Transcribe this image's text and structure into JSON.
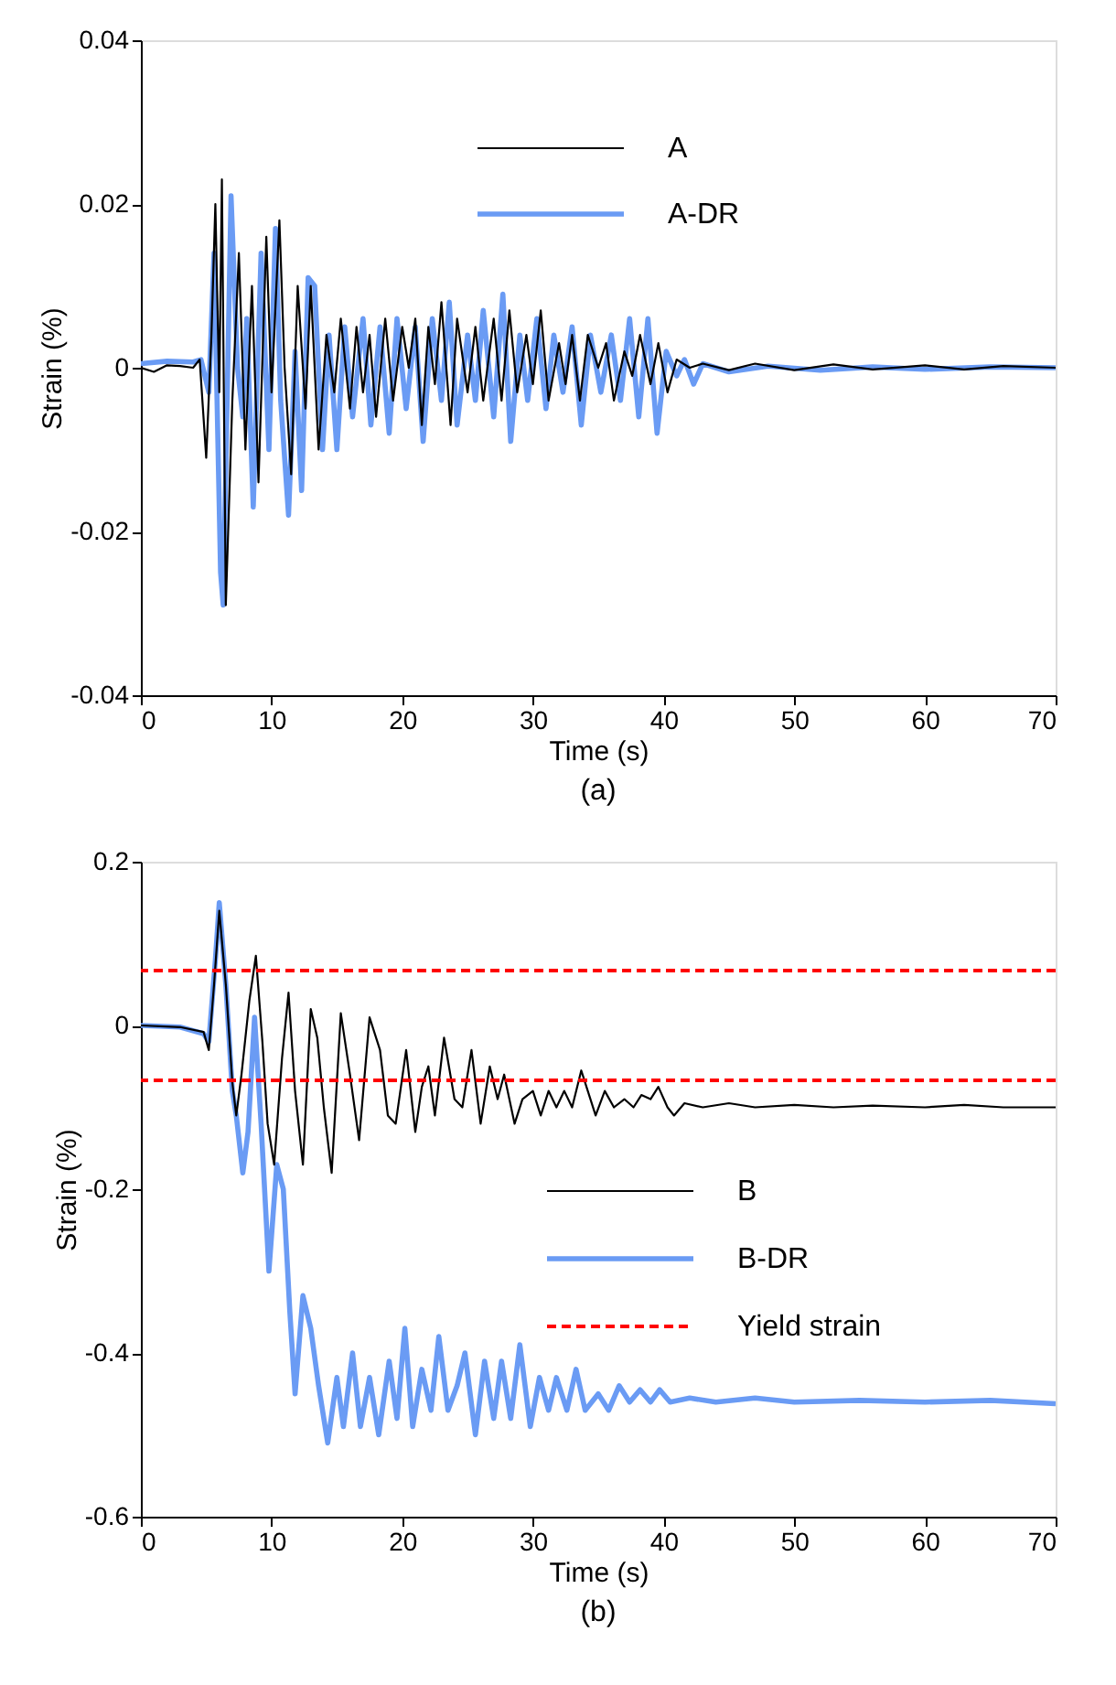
{
  "chart_data": [
    {
      "type": "line",
      "xlabel": "Time (s)",
      "ylabel": "Strain (%)",
      "xlim": [
        0,
        70
      ],
      "ylim": [
        -0.04,
        0.04
      ],
      "xticks": [
        0,
        10,
        20,
        30,
        40,
        50,
        60,
        70
      ],
      "yticks": [
        -0.04,
        -0.02,
        0,
        0.02,
        0.04
      ],
      "legend": "top",
      "annotations": [
        "(a)"
      ],
      "series": [
        {
          "name": "A",
          "color": "#000000",
          "x": [
            0,
            1,
            2,
            3,
            4,
            4.5,
            5,
            5.4,
            5.7,
            6.0,
            6.2,
            6.5,
            7,
            7.5,
            8,
            8.5,
            9,
            9.6,
            10,
            10.6,
            11,
            11.5,
            12,
            12.6,
            13,
            13.6,
            14.2,
            14.8,
            15.3,
            16,
            16.5,
            17,
            17.5,
            18,
            18.7,
            19.3,
            20,
            20.5,
            21,
            21.5,
            22,
            22.5,
            23,
            23.7,
            24.2,
            25,
            25.6,
            26.2,
            27,
            27.6,
            28.2,
            28.8,
            29.5,
            30,
            30.6,
            31.2,
            32,
            32.5,
            33,
            33.6,
            34.2,
            35,
            35.6,
            36.2,
            37,
            37.6,
            38.2,
            39,
            39.6,
            40.3,
            41,
            42,
            43,
            45,
            47,
            50,
            53,
            56,
            60,
            63,
            66,
            70
          ],
          "values": [
            0,
            -0.0005,
            0.0003,
            0.0002,
            0,
            0.001,
            -0.011,
            0.004,
            0.02,
            -0.003,
            0.023,
            -0.029,
            -0.004,
            0.014,
            -0.01,
            0.01,
            -0.014,
            0.016,
            -0.003,
            0.018,
            0.0,
            -0.013,
            0.01,
            -0.005,
            0.01,
            -0.01,
            0.004,
            -0.003,
            0.006,
            -0.005,
            0.005,
            -0.003,
            0.004,
            -0.006,
            0.006,
            -0.004,
            0.005,
            0,
            0.006,
            -0.007,
            0.005,
            -0.002,
            0.008,
            -0.007,
            0.006,
            -0.003,
            0.005,
            -0.004,
            0.006,
            -0.004,
            0.007,
            -0.003,
            0.004,
            -0.002,
            0.007,
            -0.004,
            0.003,
            -0.002,
            0.004,
            -0.004,
            0.004,
            0,
            0.003,
            -0.004,
            0.002,
            -0.001,
            0.004,
            -0.002,
            0.003,
            -0.003,
            0.001,
            0,
            0.0005,
            -0.0003,
            0.0005,
            -0.0003,
            0.0004,
            -0.0002,
            0.0003,
            -0.0002,
            0.0002,
            0
          ]
        },
        {
          "name": "A-DR",
          "color": "#6a9bf4",
          "x": [
            0,
            2,
            4,
            4.6,
            5.2,
            5.6,
            6.1,
            6.3,
            6.9,
            7.4,
            7.8,
            8.1,
            8.6,
            9.2,
            9.8,
            10.3,
            10.7,
            11.3,
            11.8,
            12.3,
            12.8,
            13.3,
            13.9,
            14.4,
            15,
            15.6,
            16.2,
            17,
            17.6,
            18.3,
            19,
            19.6,
            20.3,
            21,
            21.6,
            22.3,
            23,
            23.6,
            24.2,
            25,
            25.6,
            26.2,
            27,
            27.7,
            28.3,
            29,
            29.6,
            30.3,
            31,
            31.6,
            32.3,
            33,
            33.7,
            34.4,
            35.2,
            36,
            36.7,
            37.4,
            38.1,
            38.8,
            39.5,
            40.2,
            41,
            41.6,
            42.3,
            43,
            45,
            48,
            52,
            56,
            60,
            65,
            70
          ],
          "values": [
            0.0005,
            0.0008,
            0.0007,
            0.001,
            -0.003,
            0.014,
            -0.025,
            -0.029,
            0.021,
            0.0,
            -0.006,
            0.006,
            -0.017,
            0.014,
            -0.01,
            0.017,
            -0.004,
            -0.018,
            0.002,
            -0.015,
            0.011,
            0.01,
            -0.01,
            0.004,
            -0.01,
            0.005,
            -0.006,
            0.006,
            -0.007,
            0.005,
            -0.008,
            0.006,
            -0.005,
            0.005,
            -0.009,
            0.006,
            -0.004,
            0.008,
            -0.007,
            0.004,
            -0.004,
            0.007,
            -0.006,
            0.009,
            -0.009,
            0.004,
            -0.004,
            0.006,
            -0.005,
            0.004,
            -0.003,
            0.005,
            -0.007,
            0.004,
            -0.003,
            0.004,
            -0.004,
            0.006,
            -0.006,
            0.006,
            -0.008,
            0.002,
            -0.001,
            0.001,
            -0.002,
            0.0005,
            -0.0005,
            0.0002,
            -0.0003,
            0.0001,
            -0.0002,
            0.0001,
            0
          ]
        }
      ]
    },
    {
      "type": "line",
      "xlabel": "Time (s)",
      "ylabel": "Strain (%)",
      "xlim": [
        0,
        70
      ],
      "ylim": [
        -0.6,
        0.2
      ],
      "xticks": [
        0,
        10,
        20,
        30,
        40,
        50,
        60,
        70
      ],
      "yticks": [
        -0.6,
        -0.4,
        -0.2,
        0,
        0.2
      ],
      "legend": "right",
      "annotations": [
        "(b)"
      ],
      "ref_lines": [
        {
          "axis": "y",
          "value": 0.067,
          "label": "Yield strain",
          "color": "#ff0000",
          "line_style": "dashed"
        },
        {
          "axis": "y",
          "value": -0.067,
          "label": null,
          "color": "#ff0000",
          "line_style": "dashed"
        }
      ],
      "series": [
        {
          "name": "B",
          "color": "#000000",
          "x": [
            0,
            3,
            4.8,
            5.2,
            5.6,
            6.0,
            6.5,
            7,
            7.3,
            7.7,
            8.3,
            8.8,
            9.3,
            9.7,
            10.2,
            10.8,
            11.3,
            11.8,
            12.4,
            13,
            13.5,
            14,
            14.6,
            15.3,
            16,
            16.7,
            17.5,
            18.3,
            18.9,
            19.5,
            20.3,
            21,
            21.5,
            22,
            22.5,
            23.2,
            24,
            24.6,
            25.3,
            26,
            26.7,
            27.3,
            27.8,
            28.6,
            29.2,
            30,
            30.6,
            31.2,
            31.8,
            32.4,
            33,
            33.7,
            34.2,
            34.8,
            35.5,
            36.2,
            37,
            37.7,
            38.3,
            39,
            39.6,
            40.3,
            40.8,
            41.6,
            43,
            45,
            47,
            50,
            53,
            56,
            60,
            63,
            66,
            70
          ],
          "values": [
            0,
            -0.002,
            -0.008,
            -0.03,
            0.05,
            0.14,
            0.05,
            -0.07,
            -0.11,
            -0.06,
            0.03,
            0.085,
            -0.02,
            -0.12,
            -0.17,
            -0.04,
            0.04,
            -0.08,
            -0.17,
            0.02,
            -0.015,
            -0.1,
            -0.18,
            0.015,
            -0.06,
            -0.14,
            0.01,
            -0.03,
            -0.11,
            -0.12,
            -0.03,
            -0.13,
            -0.075,
            -0.05,
            -0.11,
            -0.015,
            -0.09,
            -0.1,
            -0.03,
            -0.12,
            -0.05,
            -0.09,
            -0.06,
            -0.12,
            -0.09,
            -0.08,
            -0.11,
            -0.08,
            -0.1,
            -0.08,
            -0.1,
            -0.055,
            -0.08,
            -0.11,
            -0.08,
            -0.1,
            -0.09,
            -0.1,
            -0.085,
            -0.09,
            -0.075,
            -0.1,
            -0.11,
            -0.095,
            -0.1,
            -0.095,
            -0.1,
            -0.097,
            -0.1,
            -0.098,
            -0.1,
            -0.097,
            -0.1,
            -0.1
          ]
        },
        {
          "name": "B-DR",
          "color": "#6a9bf4",
          "x": [
            0,
            3,
            4.8,
            5.2,
            5.7,
            6.0,
            6.5,
            7.0,
            7.3,
            7.8,
            8.2,
            8.7,
            9.2,
            9.8,
            10.4,
            10.9,
            11.4,
            11.8,
            12.4,
            13,
            13.6,
            14.3,
            15,
            15.5,
            16.2,
            16.8,
            17.5,
            18.2,
            19,
            19.6,
            20.2,
            20.8,
            21.5,
            22.2,
            22.8,
            23.5,
            24.2,
            24.8,
            25.6,
            26.3,
            27,
            27.6,
            28.3,
            29,
            29.8,
            30.5,
            31.2,
            31.8,
            32.6,
            33.3,
            34,
            35,
            35.8,
            36.6,
            37.4,
            38.2,
            39,
            39.7,
            40.5,
            42,
            44,
            47,
            50,
            55,
            60,
            65,
            70
          ],
          "values": [
            0,
            -0.002,
            -0.01,
            -0.02,
            0.08,
            0.15,
            0.05,
            -0.08,
            -0.11,
            -0.18,
            -0.13,
            0.01,
            -0.12,
            -0.3,
            -0.17,
            -0.2,
            -0.35,
            -0.45,
            -0.33,
            -0.37,
            -0.44,
            -0.51,
            -0.43,
            -0.49,
            -0.4,
            -0.49,
            -0.43,
            -0.5,
            -0.41,
            -0.48,
            -0.37,
            -0.49,
            -0.42,
            -0.47,
            -0.38,
            -0.47,
            -0.44,
            -0.4,
            -0.5,
            -0.41,
            -0.48,
            -0.41,
            -0.48,
            -0.39,
            -0.49,
            -0.43,
            -0.47,
            -0.43,
            -0.47,
            -0.42,
            -0.47,
            -0.45,
            -0.47,
            -0.44,
            -0.46,
            -0.445,
            -0.46,
            -0.445,
            -0.46,
            -0.455,
            -0.46,
            -0.455,
            -0.46,
            -0.458,
            -0.46,
            -0.458,
            -0.462
          ]
        }
      ]
    }
  ]
}
